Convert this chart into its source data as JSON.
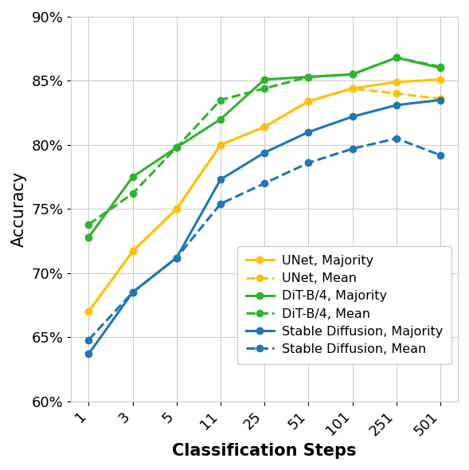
{
  "x_labels": [
    "1",
    "3",
    "5",
    "11",
    "25",
    "51",
    "101",
    "251",
    "501"
  ],
  "x_positions": [
    0,
    1,
    2,
    3,
    4,
    5,
    6,
    7,
    8
  ],
  "unet_majority": [
    67.0,
    71.7,
    75.0,
    80.0,
    81.4,
    83.4,
    84.4,
    84.9,
    85.1
  ],
  "unet_mean": [
    67.0,
    71.7,
    75.0,
    80.0,
    81.4,
    83.4,
    84.4,
    84.0,
    83.6
  ],
  "dit_majority": [
    72.8,
    77.5,
    79.8,
    82.0,
    85.1,
    85.3,
    85.5,
    86.8,
    86.0
  ],
  "dit_mean": [
    73.8,
    76.2,
    79.8,
    83.5,
    84.4,
    85.3,
    85.5,
    86.8,
    86.1
  ],
  "sd_majority": [
    63.7,
    68.5,
    71.2,
    77.3,
    79.4,
    81.0,
    82.2,
    83.1,
    83.5
  ],
  "sd_mean": [
    64.8,
    68.5,
    71.2,
    75.4,
    77.0,
    78.6,
    79.7,
    80.5,
    79.2
  ],
  "color_unet": "#FFC107",
  "color_dit": "#2DB52D",
  "color_sd": "#1F77B4",
  "xlabel": "Classification Steps",
  "ylabel": "Accuracy",
  "ylim": [
    60,
    90
  ],
  "yticks": [
    60,
    65,
    70,
    75,
    80,
    85,
    90
  ]
}
